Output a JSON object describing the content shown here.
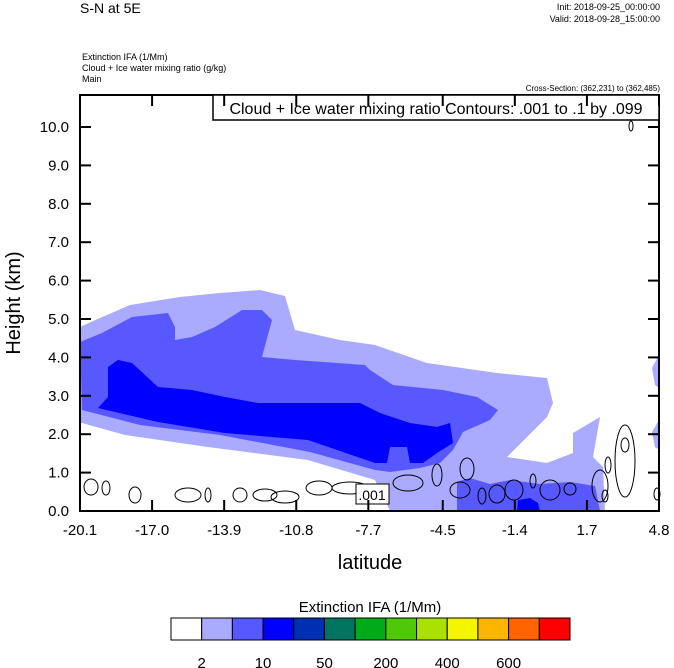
{
  "header": {
    "title": "S-N at 5E",
    "init": "Init: 2018-09-25_00:00:00",
    "valid": "Valid: 2018-09-28_15:00:00",
    "fields": [
      "Extinction IFA   (1/Mm)",
      "Cloud + Ice water mixing ratio   (g/kg)",
      "Main"
    ],
    "cross_section": "Cross-Section: (362,231) to (362,485)",
    "contour_info": "Cloud + Ice water mixing ratio Contours: .001 to .1 by .099"
  },
  "chart_data": {
    "type": "heatmap",
    "subtype": "filled contour cross-section with line contour overlay",
    "xlabel": "latitude",
    "ylabel": "Height (km)",
    "x_ticks": [
      "-20.1",
      "-17.0",
      "-13.9",
      "-10.8",
      "-7.7",
      "-4.5",
      "-1.4",
      "1.7",
      "4.8"
    ],
    "y_ticks": [
      "0.0",
      "1.0",
      "2.0",
      "3.0",
      "4.0",
      "5.0",
      "6.0",
      "7.0",
      "8.0",
      "9.0",
      "10.0"
    ],
    "xlim": [
      -20.1,
      4.8
    ],
    "ylim": [
      0,
      10.8
    ],
    "contour_label": ".001",
    "colorbar": {
      "title": "Extinction IFA  (1/Mm)",
      "tick_labels": [
        "2",
        "10",
        "50",
        "200",
        "400",
        "600"
      ],
      "colors": [
        "#ffffff",
        "#aaaaff",
        "#5858ff",
        "#0000ff",
        "#0030b0",
        "#00745f",
        "#00aa18",
        "#50c80a",
        "#aae100",
        "#f5f500",
        "#ffb400",
        "#ff6400",
        "#ff0000"
      ]
    }
  }
}
